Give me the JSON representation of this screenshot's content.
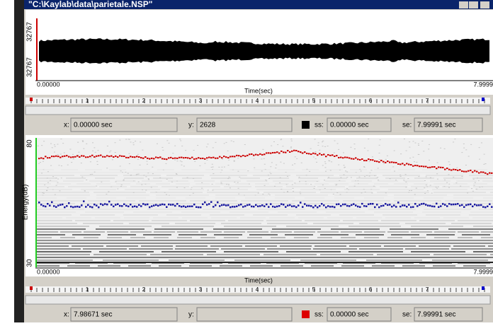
{
  "window": {
    "title": "\"C:\\Kaylab\\data\\parietale.NSP\""
  },
  "waveform": {
    "y_top": "32767",
    "y_bottom": "32767",
    "x_start": "0.00000",
    "x_end": "7.9999",
    "x_label": "Time(sec)",
    "ruler": [
      "1",
      "2",
      "3",
      "4",
      "5",
      "6",
      "7"
    ],
    "status": {
      "x_label": "x:",
      "x_value": "0.00000 sec",
      "y_label": "y:",
      "y_value": "2628",
      "ss_label": "ss:",
      "ss_value": "0.00000 sec",
      "se_label": "se:",
      "se_value": "7.99991 sec"
    }
  },
  "spectrogram": {
    "y_top": "80",
    "y_bottom": "30",
    "y_label": "Energy(dB)",
    "x_start": "0.00000",
    "x_end": "7.9999",
    "x_label": "Time(sec)",
    "ruler": [
      "1",
      "2",
      "3",
      "4",
      "5",
      "6",
      "7"
    ],
    "status": {
      "x_label": "x:",
      "x_value": "7.98671 sec",
      "y_label": "y:",
      "ss_label": "ss:",
      "ss_value": "0.00000 sec",
      "se_label": "se:",
      "se_value": "7.99991 sec"
    }
  }
}
